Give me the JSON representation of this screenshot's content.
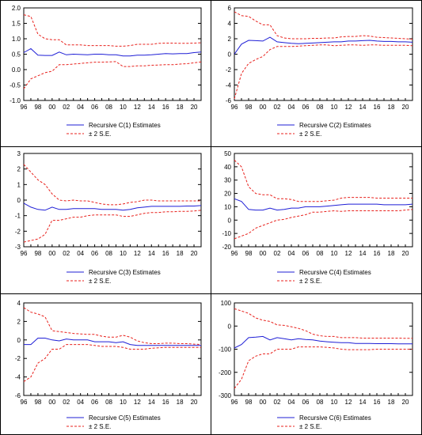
{
  "colors": {
    "estimate": "#1f1fd6",
    "band": "#e8211c",
    "frame": "#000000"
  },
  "x_ticks": [
    "96",
    "98",
    "00",
    "02",
    "04",
    "06",
    "08",
    "10",
    "12",
    "14",
    "16",
    "18",
    "20"
  ],
  "chart_data": [
    {
      "type": "line",
      "title": "",
      "x": [
        1996,
        1997,
        1998,
        1999,
        2000,
        2001,
        2002,
        2003,
        2004,
        2005,
        2006,
        2007,
        2008,
        2009,
        2010,
        2011,
        2012,
        2013,
        2014,
        2015,
        2016,
        2017,
        2018,
        2019,
        2020,
        2021
      ],
      "ylim": [
        -1.0,
        2.0
      ],
      "yticks": [
        -1.0,
        -0.5,
        0.0,
        0.5,
        1.0,
        1.5,
        2.0
      ],
      "ytick_labels": [
        "-1.0",
        "-0.5",
        "0.0",
        "0.5",
        "1.0",
        "1.5",
        "2.0"
      ],
      "grid": false,
      "legend_position": "bottom",
      "series": [
        {
          "name": "Recursive C(1) Estimates",
          "style": "solid",
          "values": [
            0.55,
            0.68,
            0.47,
            0.46,
            0.46,
            0.57,
            0.48,
            0.5,
            0.49,
            0.48,
            0.5,
            0.5,
            0.48,
            0.48,
            0.44,
            0.44,
            0.47,
            0.47,
            0.48,
            0.5,
            0.52,
            0.51,
            0.52,
            0.52,
            0.55,
            0.57
          ]
        },
        {
          "name": "± 2 S.E.",
          "style": "dashed",
          "values": [
            1.78,
            1.72,
            1.15,
            1.0,
            0.97,
            0.97,
            0.8,
            0.8,
            0.8,
            0.78,
            0.78,
            0.78,
            0.78,
            0.76,
            0.76,
            0.78,
            0.82,
            0.82,
            0.82,
            0.85,
            0.86,
            0.86,
            0.85,
            0.85,
            0.86,
            0.87
          ]
        },
        {
          "name": "",
          "style": "dashed",
          "values": [
            -0.62,
            -0.3,
            -0.2,
            -0.1,
            -0.05,
            0.16,
            0.16,
            0.18,
            0.2,
            0.22,
            0.24,
            0.24,
            0.25,
            0.26,
            0.1,
            0.1,
            0.12,
            0.12,
            0.14,
            0.15,
            0.16,
            0.16,
            0.18,
            0.19,
            0.22,
            0.25
          ]
        }
      ]
    },
    {
      "type": "line",
      "title": "",
      "x": [
        1996,
        1997,
        1998,
        1999,
        2000,
        2001,
        2002,
        2003,
        2004,
        2005,
        2006,
        2007,
        2008,
        2009,
        2010,
        2011,
        2012,
        2013,
        2014,
        2015,
        2016,
        2017,
        2018,
        2019,
        2020,
        2021
      ],
      "ylim": [
        -6,
        6
      ],
      "yticks": [
        -6,
        -4,
        -2,
        0,
        2,
        4,
        6
      ],
      "ytick_labels": [
        "-6",
        "-4",
        "-2",
        "0",
        "2",
        "4",
        "6"
      ],
      "grid": false,
      "legend_position": "bottom",
      "series": [
        {
          "name": "Recursive C(2) Estimates",
          "style": "solid",
          "values": [
            0.0,
            1.3,
            1.8,
            1.75,
            1.7,
            2.2,
            1.6,
            1.5,
            1.4,
            1.35,
            1.4,
            1.45,
            1.5,
            1.55,
            1.6,
            1.6,
            1.7,
            1.7,
            1.75,
            1.8,
            1.7,
            1.65,
            1.65,
            1.6,
            1.6,
            1.55
          ]
        },
        {
          "name": "± 2 S.E.",
          "style": "dashed",
          "values": [
            5.5,
            5.0,
            4.9,
            4.3,
            3.8,
            3.8,
            2.4,
            2.1,
            2.0,
            2.0,
            2.0,
            2.05,
            2.05,
            2.1,
            2.1,
            2.25,
            2.3,
            2.3,
            2.4,
            2.35,
            2.2,
            2.15,
            2.1,
            2.05,
            2.0,
            1.95
          ]
        },
        {
          "name": "",
          "style": "dashed",
          "values": [
            -5.8,
            -2.5,
            -1.2,
            -0.7,
            -0.3,
            0.6,
            1.0,
            1.0,
            1.0,
            1.05,
            1.1,
            1.15,
            1.2,
            1.2,
            1.1,
            1.15,
            1.2,
            1.2,
            1.15,
            1.2,
            1.2,
            1.15,
            1.15,
            1.15,
            1.15,
            1.1
          ]
        }
      ]
    },
    {
      "type": "line",
      "title": "",
      "x": [
        1996,
        1997,
        1998,
        1999,
        2000,
        2001,
        2002,
        2003,
        2004,
        2005,
        2006,
        2007,
        2008,
        2009,
        2010,
        2011,
        2012,
        2013,
        2014,
        2015,
        2016,
        2017,
        2018,
        2019,
        2020,
        2021
      ],
      "ylim": [
        -3,
        3
      ],
      "yticks": [
        -3,
        -2,
        -1,
        0,
        1,
        2,
        3
      ],
      "ytick_labels": [
        "-3",
        "-2",
        "-1",
        "0",
        "1",
        "2",
        "3"
      ],
      "grid": false,
      "legend_position": "bottom",
      "series": [
        {
          "name": "Recursive C(3) Estimates",
          "style": "solid",
          "values": [
            -0.2,
            -0.45,
            -0.6,
            -0.65,
            -0.45,
            -0.6,
            -0.6,
            -0.55,
            -0.55,
            -0.55,
            -0.55,
            -0.6,
            -0.6,
            -0.6,
            -0.65,
            -0.6,
            -0.5,
            -0.45,
            -0.4,
            -0.4,
            -0.4,
            -0.4,
            -0.4,
            -0.38,
            -0.38,
            -0.35
          ]
        },
        {
          "name": "± 2 S.E.",
          "style": "dashed",
          "values": [
            2.3,
            1.8,
            1.3,
            1.0,
            0.4,
            0.0,
            -0.05,
            0.0,
            -0.05,
            -0.05,
            -0.15,
            -0.25,
            -0.3,
            -0.3,
            -0.25,
            -0.15,
            -0.1,
            0.0,
            0.0,
            -0.05,
            -0.05,
            -0.05,
            -0.05,
            -0.05,
            -0.05,
            -0.05
          ]
        },
        {
          "name": "",
          "style": "dashed",
          "values": [
            -2.7,
            -2.6,
            -2.5,
            -2.2,
            -1.3,
            -1.3,
            -1.2,
            -1.1,
            -1.1,
            -1.0,
            -0.95,
            -0.95,
            -0.95,
            -0.95,
            -1.05,
            -1.05,
            -0.95,
            -0.85,
            -0.8,
            -0.8,
            -0.75,
            -0.75,
            -0.72,
            -0.72,
            -0.7,
            -0.65
          ]
        }
      ]
    },
    {
      "type": "line",
      "title": "",
      "x": [
        1996,
        1997,
        1998,
        1999,
        2000,
        2001,
        2002,
        2003,
        2004,
        2005,
        2006,
        2007,
        2008,
        2009,
        2010,
        2011,
        2012,
        2013,
        2014,
        2015,
        2016,
        2017,
        2018,
        2019,
        2020,
        2021
      ],
      "ylim": [
        -20,
        50
      ],
      "yticks": [
        -20,
        -10,
        0,
        10,
        20,
        30,
        40,
        50
      ],
      "ytick_labels": [
        "-20",
        "-10",
        "0",
        "10",
        "20",
        "30",
        "40",
        "50"
      ],
      "grid": false,
      "legend_position": "bottom",
      "series": [
        {
          "name": "Recursive C(4) Estimates",
          "style": "solid",
          "values": [
            16,
            14,
            8,
            7.5,
            7.5,
            9,
            7.5,
            8,
            9,
            9,
            10,
            10,
            10,
            10.5,
            11,
            11.5,
            12,
            12,
            12,
            12,
            12,
            11.5,
            11.5,
            11.5,
            11.5,
            12
          ]
        },
        {
          "name": "± 2 S.E.",
          "style": "dashed",
          "values": [
            45,
            40,
            25,
            20,
            19,
            19,
            16,
            16,
            15.5,
            14,
            14,
            14,
            14,
            14.5,
            15,
            16.5,
            17,
            17,
            17,
            17,
            16.5,
            16.5,
            16.5,
            16.5,
            16.5,
            16.5
          ]
        },
        {
          "name": "",
          "style": "dashed",
          "values": [
            -14,
            -12,
            -10,
            -6,
            -4,
            -2,
            0,
            0.5,
            2,
            3,
            4,
            6,
            6,
            6.5,
            7,
            6.5,
            7,
            7,
            7,
            7,
            7,
            7,
            7,
            7,
            7.5,
            8
          ]
        }
      ]
    },
    {
      "type": "line",
      "title": "",
      "x": [
        1996,
        1997,
        1998,
        1999,
        2000,
        2001,
        2002,
        2003,
        2004,
        2005,
        2006,
        2007,
        2008,
        2009,
        2010,
        2011,
        2012,
        2013,
        2014,
        2015,
        2016,
        2017,
        2018,
        2019,
        2020,
        2021
      ],
      "ylim": [
        -6,
        4
      ],
      "yticks": [
        -6,
        -4,
        -2,
        0,
        2,
        4
      ],
      "ytick_labels": [
        "-6",
        "-4",
        "-2",
        "0",
        "2",
        "4"
      ],
      "grid": false,
      "legend_position": "bottom",
      "series": [
        {
          "name": "Recursive C(5) Estimates",
          "style": "solid",
          "values": [
            -0.5,
            -0.5,
            0.2,
            0.2,
            0.0,
            -0.1,
            0.1,
            0.0,
            0.0,
            0.0,
            -0.2,
            -0.2,
            -0.2,
            -0.3,
            -0.2,
            -0.5,
            -0.6,
            -0.6,
            -0.6,
            -0.6,
            -0.6,
            -0.6,
            -0.6,
            -0.6,
            -0.6,
            -0.6
          ]
        },
        {
          "name": "± 2 S.E.",
          "style": "dashed",
          "values": [
            3.5,
            3.0,
            2.8,
            2.5,
            1.0,
            0.9,
            0.8,
            0.7,
            0.65,
            0.6,
            0.6,
            0.4,
            0.3,
            0.3,
            0.5,
            0.3,
            -0.1,
            -0.3,
            -0.4,
            -0.4,
            -0.35,
            -0.35,
            -0.4,
            -0.4,
            -0.45,
            -0.5
          ]
        },
        {
          "name": "",
          "style": "dashed",
          "values": [
            -4.5,
            -4.0,
            -2.5,
            -2.0,
            -1.0,
            -1.0,
            -0.5,
            -0.5,
            -0.5,
            -0.5,
            -0.6,
            -0.7,
            -0.7,
            -0.7,
            -0.8,
            -1.0,
            -1.0,
            -1.0,
            -0.9,
            -0.85,
            -0.8,
            -0.8,
            -0.8,
            -0.8,
            -0.8,
            -0.8
          ]
        }
      ]
    },
    {
      "type": "line",
      "title": "",
      "x": [
        1996,
        1997,
        1998,
        1999,
        2000,
        2001,
        2002,
        2003,
        2004,
        2005,
        2006,
        2007,
        2008,
        2009,
        2010,
        2011,
        2012,
        2013,
        2014,
        2015,
        2016,
        2017,
        2018,
        2019,
        2020,
        2021
      ],
      "ylim": [
        -300,
        100
      ],
      "yticks": [
        -300,
        -200,
        -100,
        0,
        100
      ],
      "ytick_labels": [
        "-300",
        "-200",
        "-100",
        "0",
        "100"
      ],
      "grid": false,
      "legend_position": "bottom",
      "series": [
        {
          "name": "Recursive C(6) Estimates",
          "style": "solid",
          "values": [
            -95,
            -80,
            -50,
            -48,
            -45,
            -60,
            -50,
            -55,
            -60,
            -55,
            -58,
            -60,
            -65,
            -68,
            -70,
            -72,
            -72,
            -75,
            -75,
            -75,
            -76,
            -76,
            -76,
            -77,
            -77,
            -77
          ]
        },
        {
          "name": "± 2 S.E.",
          "style": "dashed",
          "values": [
            75,
            65,
            55,
            35,
            25,
            20,
            5,
            3,
            -3,
            -10,
            -20,
            -35,
            -42,
            -45,
            -45,
            -50,
            -50,
            -50,
            -52,
            -52,
            -52,
            -52,
            -52,
            -52,
            -53,
            -53
          ]
        },
        {
          "name": "",
          "style": "dashed",
          "values": [
            -270,
            -230,
            -150,
            -130,
            -120,
            -120,
            -100,
            -100,
            -100,
            -90,
            -90,
            -90,
            -90,
            -92,
            -95,
            -100,
            -102,
            -102,
            -102,
            -102,
            -100,
            -100,
            -100,
            -100,
            -100,
            -100
          ]
        }
      ]
    }
  ]
}
